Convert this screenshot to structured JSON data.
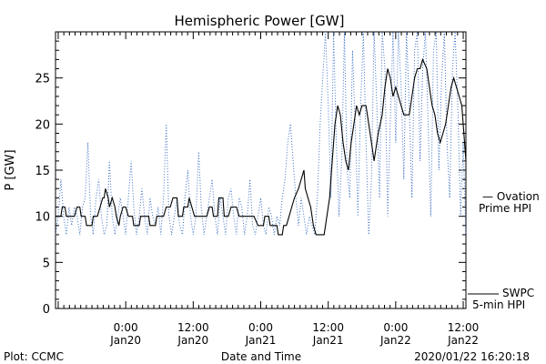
{
  "chart_data": {
    "type": "line",
    "title": "Hemispheric Power [GW]",
    "ylabel": "P [GW]",
    "xlabel": "Date and Time",
    "ylim": [
      0,
      30
    ],
    "xlim": [
      -0.52,
      2.52
    ],
    "yticks": [
      0,
      5,
      10,
      15,
      20,
      25
    ],
    "xticks": [
      {
        "x": 0.0,
        "time": "0:00",
        "date": "Jan20"
      },
      {
        "x": 0.5,
        "time": "12:00",
        "date": "Jan20"
      },
      {
        "x": 1.0,
        "time": "0:00",
        "date": "Jan21"
      },
      {
        "x": 1.5,
        "time": "12:00",
        "date": "Jan21"
      },
      {
        "x": 2.0,
        "time": "0:00",
        "date": "Jan22"
      },
      {
        "x": 2.5,
        "time": "12:00",
        "date": "Jan22"
      }
    ],
    "grid": false,
    "series": [
      {
        "name": "SWPC 5-min HPI",
        "color": "#000000",
        "style": "solid",
        "points": [
          [
            -0.52,
            10
          ],
          [
            -0.48,
            10
          ],
          [
            -0.47,
            11
          ],
          [
            -0.45,
            11
          ],
          [
            -0.44,
            10
          ],
          [
            -0.38,
            10
          ],
          [
            -0.36,
            11
          ],
          [
            -0.34,
            11
          ],
          [
            -0.33,
            10
          ],
          [
            -0.3,
            10
          ],
          [
            -0.29,
            9
          ],
          [
            -0.25,
            9
          ],
          [
            -0.24,
            10
          ],
          [
            -0.21,
            10
          ],
          [
            -0.19,
            11
          ],
          [
            -0.17,
            12
          ],
          [
            -0.16,
            12
          ],
          [
            -0.15,
            13
          ],
          [
            -0.13,
            12
          ],
          [
            -0.12,
            11
          ],
          [
            -0.1,
            12
          ],
          [
            -0.08,
            11
          ],
          [
            -0.07,
            10
          ],
          [
            -0.05,
            9
          ],
          [
            -0.04,
            10
          ],
          [
            -0.02,
            11
          ],
          [
            0.0,
            11
          ],
          [
            0.02,
            10
          ],
          [
            0.05,
            10
          ],
          [
            0.06,
            9
          ],
          [
            0.1,
            9
          ],
          [
            0.11,
            10
          ],
          [
            0.17,
            10
          ],
          [
            0.18,
            9
          ],
          [
            0.22,
            9
          ],
          [
            0.23,
            10
          ],
          [
            0.28,
            10
          ],
          [
            0.3,
            11
          ],
          [
            0.33,
            11
          ],
          [
            0.35,
            12
          ],
          [
            0.38,
            12
          ],
          [
            0.39,
            10
          ],
          [
            0.42,
            10
          ],
          [
            0.43,
            11
          ],
          [
            0.46,
            11
          ],
          [
            0.47,
            12
          ],
          [
            0.49,
            11
          ],
          [
            0.51,
            10
          ],
          [
            0.6,
            10
          ],
          [
            0.62,
            11
          ],
          [
            0.64,
            11
          ],
          [
            0.65,
            10
          ],
          [
            0.68,
            10
          ],
          [
            0.69,
            12
          ],
          [
            0.72,
            12
          ],
          [
            0.73,
            10
          ],
          [
            0.76,
            10
          ],
          [
            0.78,
            11
          ],
          [
            0.82,
            11
          ],
          [
            0.84,
            10
          ],
          [
            0.95,
            10
          ],
          [
            0.98,
            9
          ],
          [
            1.02,
            9
          ],
          [
            1.03,
            10
          ],
          [
            1.06,
            10
          ],
          [
            1.07,
            9
          ],
          [
            1.12,
            9
          ],
          [
            1.13,
            8
          ],
          [
            1.16,
            8
          ],
          [
            1.17,
            9
          ],
          [
            1.19,
            9
          ],
          [
            1.21,
            10
          ],
          [
            1.23,
            11
          ],
          [
            1.25,
            12
          ],
          [
            1.28,
            13
          ],
          [
            1.3,
            14
          ],
          [
            1.32,
            15
          ],
          [
            1.33,
            13
          ],
          [
            1.35,
            12
          ],
          [
            1.37,
            11
          ],
          [
            1.39,
            9
          ],
          [
            1.41,
            8
          ],
          [
            1.47,
            8
          ],
          [
            1.49,
            10
          ],
          [
            1.51,
            12
          ],
          [
            1.53,
            16
          ],
          [
            1.55,
            20
          ],
          [
            1.57,
            22
          ],
          [
            1.59,
            21
          ],
          [
            1.61,
            18
          ],
          [
            1.63,
            16
          ],
          [
            1.65,
            15
          ],
          [
            1.67,
            18
          ],
          [
            1.69,
            20
          ],
          [
            1.71,
            22
          ],
          [
            1.73,
            21
          ],
          [
            1.75,
            22
          ],
          [
            1.78,
            22
          ],
          [
            1.8,
            20
          ],
          [
            1.82,
            18
          ],
          [
            1.84,
            16
          ],
          [
            1.85,
            17
          ],
          [
            1.87,
            19
          ],
          [
            1.9,
            21
          ],
          [
            1.92,
            24
          ],
          [
            1.94,
            26
          ],
          [
            1.96,
            25
          ],
          [
            1.98,
            23
          ],
          [
            2.0,
            24
          ],
          [
            2.02,
            23
          ],
          [
            2.04,
            22
          ],
          [
            2.06,
            21
          ],
          [
            2.1,
            21
          ],
          [
            2.12,
            23
          ],
          [
            2.14,
            25
          ],
          [
            2.16,
            26
          ],
          [
            2.18,
            26
          ],
          [
            2.2,
            27
          ],
          [
            2.23,
            26
          ],
          [
            2.25,
            24
          ],
          [
            2.27,
            22
          ],
          [
            2.29,
            21
          ],
          [
            2.31,
            19
          ],
          [
            2.33,
            18
          ],
          [
            2.35,
            19
          ],
          [
            2.37,
            20
          ],
          [
            2.39,
            22
          ],
          [
            2.41,
            24
          ],
          [
            2.43,
            25
          ],
          [
            2.45,
            24
          ],
          [
            2.47,
            23
          ],
          [
            2.49,
            22
          ],
          [
            2.51,
            18
          ],
          [
            2.52,
            16
          ]
        ]
      },
      {
        "name": "Ovation Prime HPI",
        "color": "#3a6fc4",
        "style": "dotted",
        "points": [
          [
            -0.52,
            8
          ],
          [
            -0.5,
            10
          ],
          [
            -0.48,
            14
          ],
          [
            -0.46,
            10
          ],
          [
            -0.44,
            8
          ],
          [
            -0.42,
            11
          ],
          [
            -0.4,
            9
          ],
          [
            -0.38,
            11
          ],
          [
            -0.36,
            10
          ],
          [
            -0.34,
            8
          ],
          [
            -0.32,
            11
          ],
          [
            -0.3,
            12
          ],
          [
            -0.28,
            18
          ],
          [
            -0.26,
            10
          ],
          [
            -0.24,
            8
          ],
          [
            -0.22,
            12
          ],
          [
            -0.2,
            14
          ],
          [
            -0.18,
            10
          ],
          [
            -0.16,
            8
          ],
          [
            -0.14,
            9
          ],
          [
            -0.12,
            16
          ],
          [
            -0.1,
            10
          ],
          [
            -0.08,
            8
          ],
          [
            -0.06,
            10
          ],
          [
            -0.04,
            12
          ],
          [
            -0.02,
            10
          ],
          [
            0.0,
            8
          ],
          [
            0.02,
            12
          ],
          [
            0.04,
            16
          ],
          [
            0.06,
            11
          ],
          [
            0.08,
            8
          ],
          [
            0.1,
            10
          ],
          [
            0.12,
            13
          ],
          [
            0.14,
            10
          ],
          [
            0.16,
            8
          ],
          [
            0.18,
            12
          ],
          [
            0.2,
            10
          ],
          [
            0.22,
            9
          ],
          [
            0.24,
            11
          ],
          [
            0.26,
            8
          ],
          [
            0.28,
            12
          ],
          [
            0.3,
            20
          ],
          [
            0.32,
            10
          ],
          [
            0.34,
            8
          ],
          [
            0.36,
            10
          ],
          [
            0.38,
            12
          ],
          [
            0.4,
            9
          ],
          [
            0.42,
            8
          ],
          [
            0.44,
            12
          ],
          [
            0.46,
            15
          ],
          [
            0.48,
            10
          ],
          [
            0.5,
            8
          ],
          [
            0.52,
            10
          ],
          [
            0.54,
            17
          ],
          [
            0.56,
            11
          ],
          [
            0.58,
            8
          ],
          [
            0.6,
            10
          ],
          [
            0.62,
            12
          ],
          [
            0.64,
            14
          ],
          [
            0.66,
            10
          ],
          [
            0.68,
            8
          ],
          [
            0.7,
            12
          ],
          [
            0.72,
            10
          ],
          [
            0.74,
            8
          ],
          [
            0.76,
            12
          ],
          [
            0.78,
            13
          ],
          [
            0.8,
            10
          ],
          [
            0.82,
            8
          ],
          [
            0.84,
            12
          ],
          [
            0.86,
            11
          ],
          [
            0.88,
            8
          ],
          [
            0.9,
            10
          ],
          [
            0.92,
            14
          ],
          [
            0.94,
            9
          ],
          [
            0.96,
            8
          ],
          [
            0.98,
            10
          ],
          [
            1.0,
            12
          ],
          [
            1.02,
            9
          ],
          [
            1.04,
            8
          ],
          [
            1.06,
            11
          ],
          [
            1.08,
            10
          ],
          [
            1.1,
            8
          ],
          [
            1.12,
            10
          ],
          [
            1.14,
            9
          ],
          [
            1.16,
            12
          ],
          [
            1.18,
            14
          ],
          [
            1.2,
            18
          ],
          [
            1.22,
            20
          ],
          [
            1.24,
            16
          ],
          [
            1.26,
            12
          ],
          [
            1.28,
            9
          ],
          [
            1.3,
            12
          ],
          [
            1.32,
            10
          ],
          [
            1.34,
            8
          ],
          [
            1.36,
            10
          ],
          [
            1.38,
            9
          ],
          [
            1.4,
            8
          ],
          [
            1.42,
            12
          ],
          [
            1.44,
            20
          ],
          [
            1.46,
            25
          ],
          [
            1.48,
            30
          ],
          [
            1.5,
            22
          ],
          [
            1.52,
            12
          ],
          [
            1.54,
            30
          ],
          [
            1.56,
            18
          ],
          [
            1.58,
            10
          ],
          [
            1.6,
            16
          ],
          [
            1.62,
            30
          ],
          [
            1.64,
            15
          ],
          [
            1.66,
            12
          ],
          [
            1.68,
            28
          ],
          [
            1.7,
            20
          ],
          [
            1.72,
            10
          ],
          [
            1.74,
            22
          ],
          [
            1.76,
            30
          ],
          [
            1.78,
            18
          ],
          [
            1.8,
            8
          ],
          [
            1.82,
            14
          ],
          [
            1.84,
            30
          ],
          [
            1.86,
            22
          ],
          [
            1.88,
            12
          ],
          [
            1.9,
            30
          ],
          [
            1.92,
            26
          ],
          [
            1.94,
            10
          ],
          [
            1.96,
            20
          ],
          [
            1.98,
            30
          ],
          [
            2.0,
            18
          ],
          [
            2.02,
            30
          ],
          [
            2.04,
            24
          ],
          [
            2.06,
            14
          ],
          [
            2.08,
            30
          ],
          [
            2.1,
            22
          ],
          [
            2.12,
            12
          ],
          [
            2.14,
            28
          ],
          [
            2.16,
            30
          ],
          [
            2.18,
            16
          ],
          [
            2.2,
            26
          ],
          [
            2.22,
            30
          ],
          [
            2.24,
            20
          ],
          [
            2.26,
            10
          ],
          [
            2.28,
            28
          ],
          [
            2.3,
            30
          ],
          [
            2.32,
            15
          ],
          [
            2.34,
            25
          ],
          [
            2.36,
            30
          ],
          [
            2.38,
            18
          ],
          [
            2.4,
            12
          ],
          [
            2.42,
            26
          ],
          [
            2.44,
            30
          ],
          [
            2.46,
            22
          ],
          [
            2.48,
            10
          ],
          [
            2.5,
            18
          ],
          [
            2.52,
            8
          ]
        ]
      }
    ],
    "legend": [
      {
        "line1": "— Ovation",
        "line2": "Prime HPI",
        "color": "#3a6fc4"
      },
      {
        "line1": "SWPC",
        "line2": "5-min HPI",
        "color": "#000000"
      }
    ]
  },
  "footer": {
    "left": "Plot: CCMC",
    "center": "Date and Time",
    "right": "2020/01/22 16:20:18"
  }
}
